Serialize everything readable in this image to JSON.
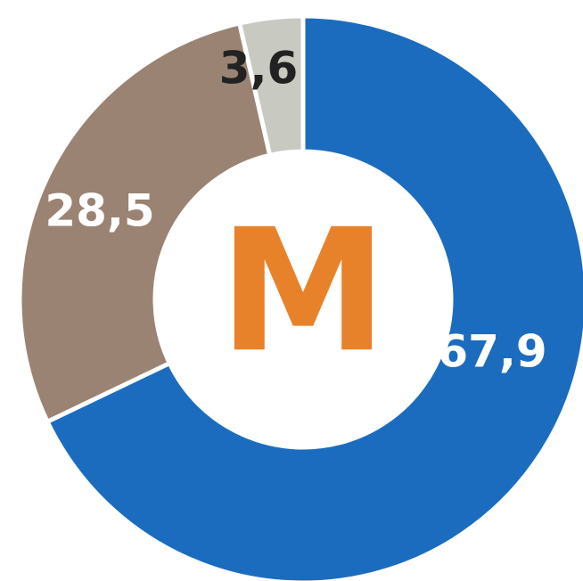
{
  "chart_data": {
    "type": "donut",
    "center_label": "M",
    "values": [
      67.9,
      28.5,
      3.6
    ],
    "value_labels": [
      "67,9",
      "28,5",
      "3,6"
    ],
    "colors": [
      "#1b6cbe",
      "#9a8373",
      "#c8c9c1"
    ],
    "label_colors": [
      "#ffffff",
      "#ffffff",
      "#222222"
    ]
  }
}
